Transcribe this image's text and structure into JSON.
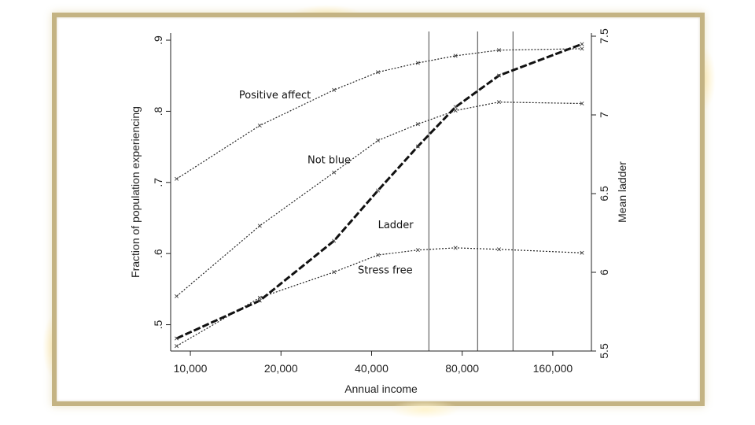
{
  "chart_data": {
    "type": "line",
    "xlabel": "Annual income",
    "ylabel_left": "Fraction of population experiencing",
    "ylabel_right": "Mean ladder",
    "x_scale": "log",
    "xlim": [
      8600,
      215000
    ],
    "ylim_left": [
      0.463,
      0.91
    ],
    "ylim_right": [
      5.5,
      7.52
    ],
    "x_ticks": [
      {
        "value": 10000,
        "label": "10,000"
      },
      {
        "value": 20000,
        "label": "20,000"
      },
      {
        "value": 40000,
        "label": "40,000"
      },
      {
        "value": 80000,
        "label": "80,000"
      },
      {
        "value": 160000,
        "label": "160,000"
      }
    ],
    "y_ticks_left": [
      {
        "value": 0.5,
        "label": ".5"
      },
      {
        "value": 0.6,
        "label": ".6"
      },
      {
        "value": 0.7,
        "label": ".7"
      },
      {
        "value": 0.8,
        "label": ".8"
      },
      {
        "value": 0.9,
        "label": ".9"
      }
    ],
    "y_ticks_right": [
      {
        "value": 5.5,
        "label": "5.5"
      },
      {
        "value": 6,
        "label": "6"
      },
      {
        "value": 6.5,
        "label": "6.5"
      },
      {
        "value": 7,
        "label": "7"
      },
      {
        "value": 7.5,
        "label": "7.5"
      }
    ],
    "reference_lines_x": [
      62000,
      90000,
      118000
    ],
    "series": [
      {
        "name": "Positive affect",
        "axis": "left",
        "style": "dotted",
        "label_at": [
          14500,
          0.818
        ],
        "points": [
          [
            9000,
            0.705
          ],
          [
            17000,
            0.78
          ],
          [
            30000,
            0.83
          ],
          [
            42000,
            0.855
          ],
          [
            57000,
            0.868
          ],
          [
            76000,
            0.878
          ],
          [
            106000,
            0.886
          ],
          [
            200000,
            0.888
          ]
        ]
      },
      {
        "name": "Not blue",
        "axis": "left",
        "style": "dotted",
        "label_at": [
          24500,
          0.727
        ],
        "points": [
          [
            9000,
            0.54
          ],
          [
            17000,
            0.639
          ],
          [
            30000,
            0.714
          ],
          [
            42000,
            0.759
          ],
          [
            57000,
            0.782
          ],
          [
            76000,
            0.801
          ],
          [
            106000,
            0.813
          ],
          [
            200000,
            0.811
          ]
        ]
      },
      {
        "name": "Stress free",
        "axis": "left",
        "style": "dotted",
        "label_at": [
          36000,
          0.572
        ],
        "points": [
          [
            9000,
            0.47
          ],
          [
            17000,
            0.538
          ],
          [
            30000,
            0.574
          ],
          [
            42000,
            0.598
          ],
          [
            57000,
            0.605
          ],
          [
            76000,
            0.608
          ],
          [
            106000,
            0.606
          ],
          [
            200000,
            0.601
          ]
        ]
      },
      {
        "name": "Ladder",
        "axis": "right",
        "style": "dashed",
        "label_at": [
          42000,
          6.28
        ],
        "points": [
          [
            9000,
            5.58
          ],
          [
            17000,
            5.82
          ],
          [
            30000,
            6.2
          ],
          [
            42000,
            6.52
          ],
          [
            57000,
            6.8
          ],
          [
            76000,
            7.05
          ],
          [
            106000,
            7.25
          ],
          [
            200000,
            7.45
          ]
        ]
      }
    ]
  }
}
